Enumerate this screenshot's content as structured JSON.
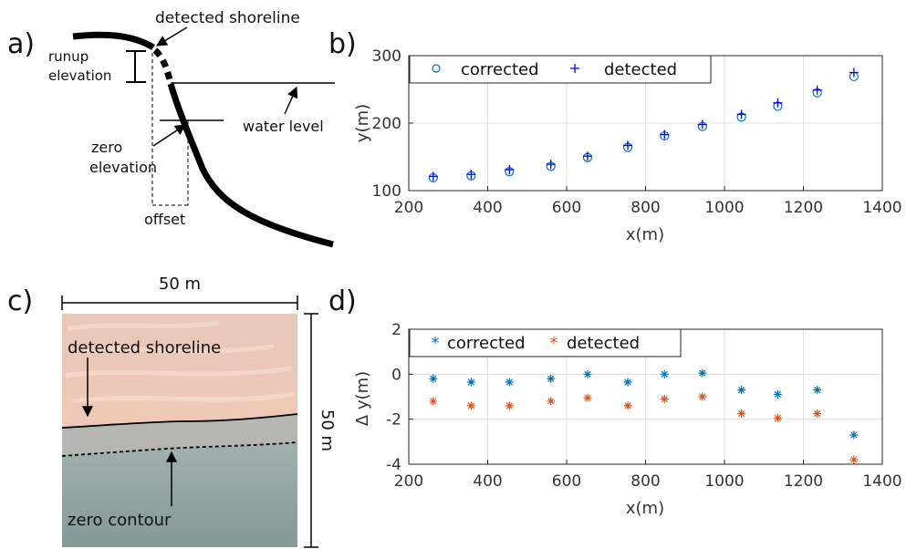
{
  "panel_labels": {
    "a": "a)",
    "b": "b)",
    "c": "c)",
    "d": "d)"
  },
  "schematic": {
    "detected_shoreline": "detected shoreline",
    "runup_line1": "runup",
    "runup_line2": "elevation",
    "zero_line1": "zero",
    "zero_line2": "elevation",
    "water_level": "water level",
    "offset": "offset"
  },
  "photo": {
    "width_label": "50 m",
    "height_label": "50 m",
    "detected_shoreline": "detected shoreline",
    "zero_contour": "zero contour"
  },
  "colors": {
    "blue": "#0072BD",
    "orange": "#D95319",
    "grid": "#e0e0e0"
  },
  "chart_data": [
    {
      "type": "scatter",
      "panel": "b",
      "xlabel": "x(m)",
      "ylabel": "y(m)",
      "xlim": [
        200,
        1400
      ],
      "ylim": [
        100,
        300
      ],
      "xticks": [
        200,
        400,
        600,
        800,
        1000,
        1200,
        1400
      ],
      "yticks": [
        100,
        200,
        300
      ],
      "grid": true,
      "legend": "top-left",
      "x": [
        262,
        358,
        455,
        560,
        653,
        755,
        848,
        944,
        1043,
        1135,
        1235,
        1328
      ],
      "series": [
        {
          "name": "corrected",
          "marker": "circle",
          "values": [
            119,
            122,
            128,
            136,
            149,
            164,
            181,
            195,
            209,
            225,
            245,
            269
          ]
        },
        {
          "name": "detected",
          "marker": "plus",
          "values": [
            121,
            124,
            131,
            139,
            151,
            167,
            183,
            198,
            213,
            230,
            249,
            275
          ]
        }
      ]
    },
    {
      "type": "scatter",
      "panel": "d",
      "xlabel": "x(m)",
      "ylabel": "Δ y(m)",
      "xlim": [
        200,
        1400
      ],
      "ylim": [
        -4,
        2
      ],
      "xticks": [
        200,
        400,
        600,
        800,
        1000,
        1200,
        1400
      ],
      "yticks": [
        -4,
        -2,
        0,
        2
      ],
      "grid": true,
      "legend": "top-left",
      "x": [
        262,
        358,
        455,
        560,
        653,
        755,
        848,
        944,
        1043,
        1135,
        1235,
        1328
      ],
      "series": [
        {
          "name": "corrected",
          "marker": "asterisk",
          "values": [
            -0.2,
            -0.35,
            -0.35,
            -0.2,
            0.0,
            -0.35,
            0.0,
            0.05,
            -0.7,
            -0.9,
            -0.7,
            -2.7
          ]
        },
        {
          "name": "detected",
          "marker": "asterisk",
          "values": [
            -1.2,
            -1.4,
            -1.4,
            -1.2,
            -1.05,
            -1.4,
            -1.1,
            -1.0,
            -1.75,
            -1.95,
            -1.75,
            -3.8
          ]
        }
      ]
    }
  ]
}
